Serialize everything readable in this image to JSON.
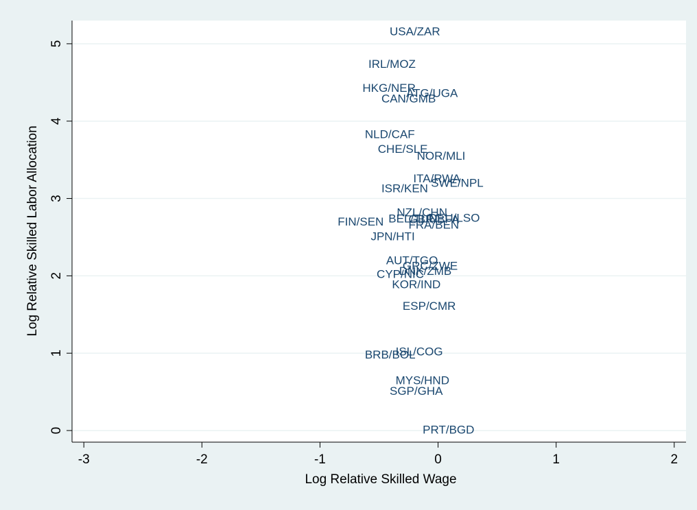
{
  "chart_data": {
    "type": "scatter",
    "xlabel": "Log Relative Skilled Wage",
    "ylabel": "Log Relative Skilled Labor Allocation",
    "labels": [
      "USA/ZAR",
      "IRL/MOZ",
      "HKG/NER",
      "ATG/UGA",
      "CAN/GMB",
      "NLD/CAF",
      "CHE/SLE",
      "NOR/MLI",
      "ITA/RWA",
      "SWE/NPL",
      "ISR/KEN",
      "NZL/CHN",
      "BEL/TUN",
      "GBR/BFA",
      "DEU/LSO",
      "FIN/SEN",
      "FRA/BEN",
      "JPN/HTI",
      "AUT/TGO",
      "GRC/ZWE",
      "DNK/ZMB",
      "CYP/NIC",
      "KOR/IND",
      "ESP/CMR",
      "ISL/COG",
      "BRB/BOL",
      "MYS/HND",
      "SGP/GHA",
      "PRT/BGD"
    ],
    "x": [
      -0.41,
      -0.59,
      -0.64,
      -0.27,
      -0.48,
      -0.62,
      -0.51,
      -0.18,
      -0.21,
      -0.06,
      -0.48,
      -0.35,
      -0.42,
      -0.25,
      -0.08,
      -0.85,
      -0.25,
      -0.57,
      -0.44,
      -0.3,
      -0.33,
      -0.52,
      -0.39,
      -0.3,
      -0.36,
      -0.62,
      -0.36,
      -0.41,
      -0.13
    ],
    "values": [
      5.15,
      4.73,
      4.42,
      4.35,
      4.28,
      3.82,
      3.63,
      3.54,
      3.25,
      3.19,
      3.12,
      2.81,
      2.73,
      2.72,
      2.74,
      2.69,
      2.65,
      2.5,
      2.19,
      2.12,
      2.05,
      2.01,
      1.88,
      1.6,
      1.01,
      0.97,
      0.64,
      0.5,
      0.0
    ],
    "color": "#1a476f",
    "xlim": [
      -3.1,
      2.1
    ],
    "ylim": [
      -0.15,
      5.3
    ],
    "xticks": [
      -3,
      -2,
      -1,
      0,
      1,
      2
    ],
    "yticks": [
      0,
      1,
      2,
      3,
      4,
      5
    ],
    "grid": true
  }
}
